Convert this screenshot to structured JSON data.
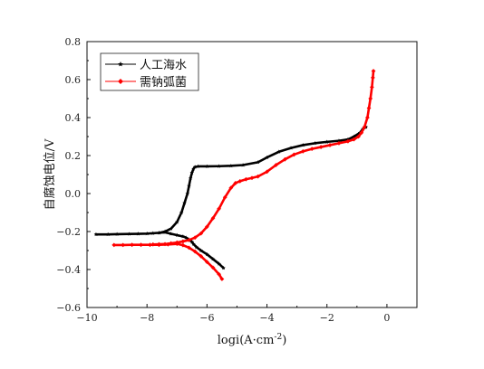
{
  "chart_data": {
    "type": "line",
    "xlabel": "logi(A·cm",
    "xlabel_sup": "-2",
    "xlabel_tail": ")",
    "ylabel": "自腐蚀电位/V",
    "xlim": [
      -10,
      1
    ],
    "ylim": [
      -0.6,
      0.8
    ],
    "xticks": [
      -10,
      -8,
      -6,
      -4,
      -2,
      0
    ],
    "yticks": [
      -0.6,
      -0.4,
      -0.2,
      0.0,
      0.2,
      0.4,
      0.6,
      0.8
    ],
    "xtick_labels": [
      "−10",
      "−8",
      "−6",
      "−4",
      "−2",
      "0"
    ],
    "ytick_labels": [
      "−0.6",
      "−0.4",
      "−0.2",
      "0.0",
      "0.2",
      "0.4",
      "0.6",
      "0.8"
    ],
    "grid": false,
    "legend_position": "top-left",
    "series": [
      {
        "name": "人工海水",
        "color": "#000000",
        "marker": "star",
        "segments": [
          {
            "x": [
              -9.7,
              -9.3,
              -9.0,
              -8.6,
              -8.3,
              -8.0,
              -7.8,
              -7.6,
              -7.4,
              -7.2,
              -7.0,
              -6.8,
              -6.7,
              -6.6,
              -6.5,
              -6.45,
              -6.35,
              -6.2,
              -6.0,
              -5.8,
              -5.6,
              -5.45
            ],
            "y": [
              -0.215,
              -0.215,
              -0.214,
              -0.213,
              -0.212,
              -0.211,
              -0.209,
              -0.207,
              -0.204,
              -0.212,
              -0.219,
              -0.226,
              -0.232,
              -0.242,
              -0.255,
              -0.266,
              -0.282,
              -0.3,
              -0.32,
              -0.345,
              -0.37,
              -0.392
            ]
          },
          {
            "x": [
              -7.6,
              -7.4,
              -7.2,
              -7.0,
              -6.85,
              -6.75,
              -6.65,
              -6.6,
              -6.55,
              -6.5,
              -6.45,
              -6.4,
              -6.3,
              -6.0,
              -5.6,
              -5.2,
              -4.8,
              -4.3,
              -4.0,
              -3.6,
              -3.2,
              -2.8,
              -2.4,
              -2.0,
              -1.6,
              -1.3,
              -1.1,
              -0.9,
              -0.8,
              -0.7
            ],
            "y": [
              -0.207,
              -0.2,
              -0.185,
              -0.15,
              -0.1,
              -0.05,
              0.0,
              0.04,
              0.08,
              0.11,
              0.13,
              0.14,
              0.143,
              0.143,
              0.144,
              0.146,
              0.15,
              0.165,
              0.19,
              0.22,
              0.24,
              0.255,
              0.265,
              0.272,
              0.278,
              0.285,
              0.3,
              0.32,
              0.34,
              0.35
            ]
          }
        ]
      },
      {
        "name": "需钠弧菌",
        "color": "#ff0000",
        "marker": "diamond",
        "segments": [
          {
            "x": [
              -9.1,
              -8.8,
              -8.5,
              -8.2,
              -7.9,
              -7.6,
              -7.3,
              -7.0,
              -6.8,
              -6.6,
              -6.4,
              -6.2,
              -6.0,
              -5.8,
              -5.6,
              -5.5
            ],
            "y": [
              -0.271,
              -0.271,
              -0.27,
              -0.27,
              -0.27,
              -0.27,
              -0.268,
              -0.265,
              -0.272,
              -0.285,
              -0.305,
              -0.33,
              -0.36,
              -0.39,
              -0.425,
              -0.45
            ]
          },
          {
            "x": [
              -7.8,
              -7.6,
              -7.4,
              -7.2,
              -7.0,
              -6.8,
              -6.6,
              -6.4,
              -6.2,
              -6.0,
              -5.8,
              -5.6,
              -5.4,
              -5.2,
              -5.05,
              -4.9,
              -4.7,
              -4.5,
              -4.3,
              -4.0,
              -3.7,
              -3.4,
              -3.1,
              -2.8,
              -2.5,
              -2.2,
              -1.9,
              -1.6,
              -1.3,
              -1.1,
              -0.95,
              -0.85,
              -0.75,
              -0.65,
              -0.6,
              -0.55,
              -0.5,
              -0.47,
              -0.45
            ],
            "y": [
              -0.268,
              -0.267,
              -0.266,
              -0.262,
              -0.258,
              -0.252,
              -0.245,
              -0.232,
              -0.21,
              -0.175,
              -0.13,
              -0.08,
              -0.02,
              0.03,
              0.055,
              0.065,
              0.075,
              0.082,
              0.09,
              0.115,
              0.15,
              0.18,
              0.205,
              0.222,
              0.235,
              0.245,
              0.255,
              0.265,
              0.275,
              0.285,
              0.3,
              0.32,
              0.35,
              0.4,
              0.45,
              0.5,
              0.56,
              0.61,
              0.645
            ]
          }
        ]
      }
    ]
  }
}
